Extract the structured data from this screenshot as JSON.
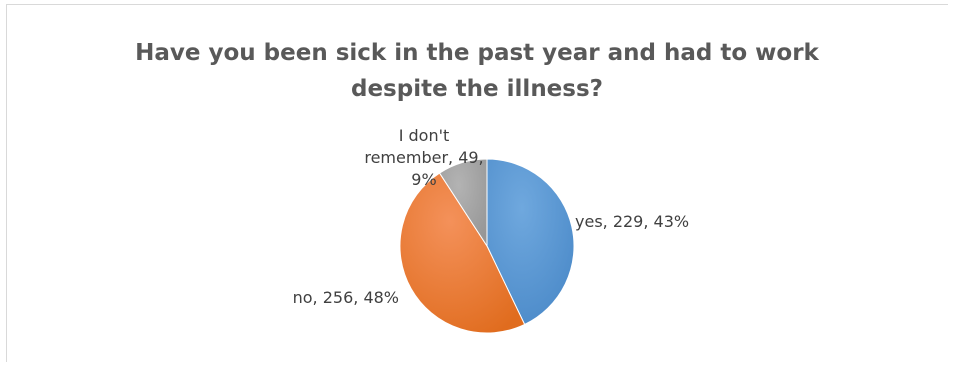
{
  "chart_data": {
    "type": "pie",
    "title": "Have you been sick in the past year and had to work despite the illness?",
    "categories": [
      "yes",
      "no",
      "I don't remember"
    ],
    "values": [
      229,
      256,
      49
    ],
    "percents": [
      "43%",
      "48%",
      "9%"
    ],
    "labels": [
      [
        "yes, 229, 43%"
      ],
      [
        "no, 256, 48%"
      ],
      [
        "I don't",
        "remember, 49,",
        "9%"
      ]
    ],
    "colors": [
      "#5b9bd5",
      "#ed7d31",
      "#a5a5a5"
    ],
    "legend": "none"
  }
}
